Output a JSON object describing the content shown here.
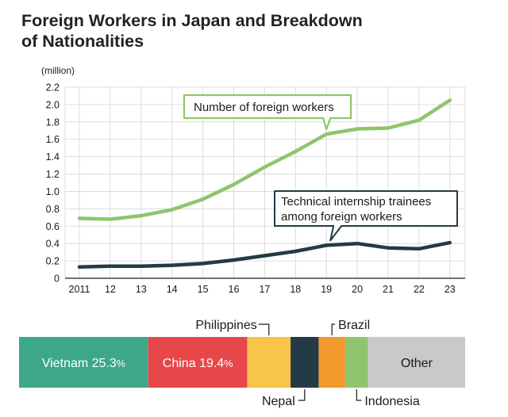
{
  "title_line1": "Foreign Workers in Japan and Breakdown",
  "title_line2": "of Nationalities",
  "chart_data": [
    {
      "type": "line",
      "ylabel": "(million)",
      "ylim": [
        0,
        2.2
      ],
      "yticks": [
        "0",
        "0.2",
        "0.4",
        "0.6",
        "0.8",
        "1.0",
        "1.2",
        "1.4",
        "1.6",
        "1.8",
        "2.0",
        "2.2"
      ],
      "x": [
        "2011",
        "12",
        "13",
        "14",
        "15",
        "16",
        "17",
        "18",
        "19",
        "20",
        "21",
        "22",
        "23"
      ],
      "grid": true,
      "series": [
        {
          "name": "Number of foreign workers",
          "color": "#8fc56d",
          "values": [
            0.69,
            0.68,
            0.72,
            0.79,
            0.91,
            1.08,
            1.28,
            1.46,
            1.66,
            1.72,
            1.73,
            1.82,
            2.05
          ]
        },
        {
          "name_lines": [
            "Technical internship trainees",
            "among foreign workers"
          ],
          "color": "#233b45",
          "values": [
            0.13,
            0.14,
            0.14,
            0.15,
            0.17,
            0.21,
            0.26,
            0.31,
            0.38,
            0.4,
            0.35,
            0.34,
            0.41
          ]
        }
      ]
    },
    {
      "type": "bar",
      "orientation": "horizontal-stacked",
      "segments": [
        {
          "name": "Vietnam",
          "pct_text": "25.3%",
          "value": 25.3,
          "color": "#3da887",
          "text_color": "#ffffff",
          "label_inside": true
        },
        {
          "name": "China",
          "pct_text": "19.4%",
          "value": 19.4,
          "color": "#e8474a",
          "text_color": "#ffffff",
          "label_inside": true
        },
        {
          "name": "Philippines",
          "value": 8.5,
          "color": "#f8c54a",
          "label_inside": false,
          "label_pos": "top"
        },
        {
          "name": "Nepal",
          "value": 5.5,
          "color": "#233b45",
          "label_inside": false,
          "label_pos": "bottom"
        },
        {
          "name": "Brazil",
          "value": 5.2,
          "color": "#f29a2e",
          "label_inside": false,
          "label_pos": "top"
        },
        {
          "name": "Indonesia",
          "value": 4.5,
          "color": "#8fc56d",
          "label_inside": false,
          "label_pos": "bottom"
        },
        {
          "name": "Other",
          "value": 19.0,
          "color": "#c9c9c9",
          "text_color": "#1a1a1a",
          "label_inside": true
        }
      ]
    }
  ]
}
